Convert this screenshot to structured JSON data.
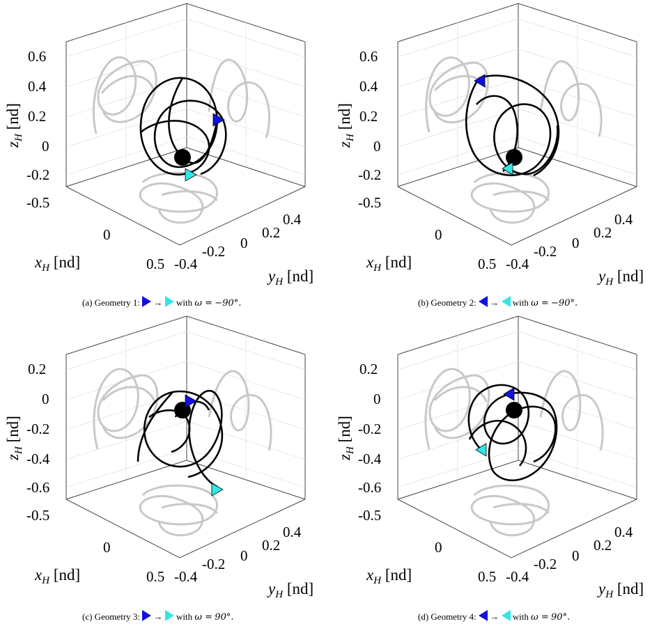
{
  "chart_data": [
    {
      "type": "line",
      "id": "a",
      "caption": {
        "prefix": "(a) Geometry 1:",
        "suffix": "with",
        "omega_deg": "−90°."
      },
      "arrow_dir": "right",
      "xlabel": "x_H [nd]",
      "ylabel": "y_H [nd]",
      "zlabel": "z_H [nd]",
      "xticks": [
        "-0.5",
        "0",
        "0.5"
      ],
      "yticks": [
        "-0.4",
        "-0.2",
        "0",
        "0.2",
        "0.4"
      ],
      "zticks": [
        "0.6",
        "0.4",
        "0.2",
        "0",
        "-0.2"
      ],
      "zlim": [
        -0.25,
        0.65
      ],
      "colors": {
        "trajectory": "#000000",
        "projection": "#c8c8c8",
        "start": "#1010e0",
        "end": "#33e6e6"
      }
    },
    {
      "type": "line",
      "id": "b",
      "caption": {
        "prefix": "(b) Geometry 2:",
        "suffix": "with",
        "omega_deg": "−90°."
      },
      "arrow_dir": "left",
      "xlabel": "x_H [nd]",
      "ylabel": "y_H [nd]",
      "zlabel": "z_H [nd]",
      "xticks": [
        "-0.5",
        "0",
        "0.5"
      ],
      "yticks": [
        "-0.4",
        "-0.2",
        "0",
        "0.2",
        "0.4"
      ],
      "zticks": [
        "0.6",
        "0.4",
        "0.2",
        "0",
        "-0.2"
      ],
      "zlim": [
        -0.25,
        0.65
      ],
      "colors": {
        "trajectory": "#000000",
        "projection": "#c8c8c8",
        "start": "#1010e0",
        "end": "#33e6e6"
      }
    },
    {
      "type": "line",
      "id": "c",
      "caption": {
        "prefix": "(c) Geometry 3:",
        "suffix": "with",
        "omega_deg": "90°."
      },
      "arrow_dir": "right",
      "xlabel": "x_H [nd]",
      "ylabel": "y_H [nd]",
      "zlabel": "z_H [nd]",
      "xticks": [
        "-0.5",
        "0",
        "0.5"
      ],
      "yticks": [
        "-0.4",
        "-0.2",
        "0",
        "0.2",
        "0.4"
      ],
      "zticks": [
        "0.2",
        "0",
        "-0.2",
        "-0.4",
        "-0.6"
      ],
      "zlim": [
        -0.65,
        0.25
      ],
      "colors": {
        "trajectory": "#000000",
        "projection": "#c8c8c8",
        "start": "#1010e0",
        "end": "#33e6e6"
      }
    },
    {
      "type": "line",
      "id": "d",
      "caption": {
        "prefix": "(d) Geometry 4:",
        "suffix": "with",
        "omega_deg": "90°."
      },
      "arrow_dir": "left",
      "xlabel": "x_H [nd]",
      "ylabel": "y_H [nd]",
      "zlabel": "z_H [nd]",
      "xticks": [
        "-0.5",
        "0",
        "0.5"
      ],
      "yticks": [
        "-0.4",
        "-0.2",
        "0",
        "0.2",
        "0.4"
      ],
      "zticks": [
        "0.2",
        "0",
        "-0.2",
        "-0.4",
        "-0.6"
      ],
      "zlim": [
        -0.65,
        0.25
      ],
      "colors": {
        "trajectory": "#000000",
        "projection": "#c8c8c8",
        "start": "#1010e0",
        "end": "#33e6e6"
      }
    }
  ]
}
